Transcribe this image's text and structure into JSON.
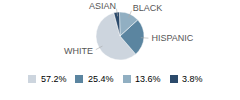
{
  "chart_data": {
    "type": "pie",
    "categories": [
      "WHITE",
      "HISPANIC",
      "BLACK",
      "ASIAN"
    ],
    "values": [
      57.2,
      25.4,
      13.6,
      3.8
    ],
    "value_labels": [
      "57.2%",
      "25.4%",
      "13.6%",
      "3.8%"
    ],
    "colors": [
      "#cdd5de",
      "#5b85a0",
      "#91afc2",
      "#2b4a6b"
    ],
    "legend": "bottom"
  }
}
